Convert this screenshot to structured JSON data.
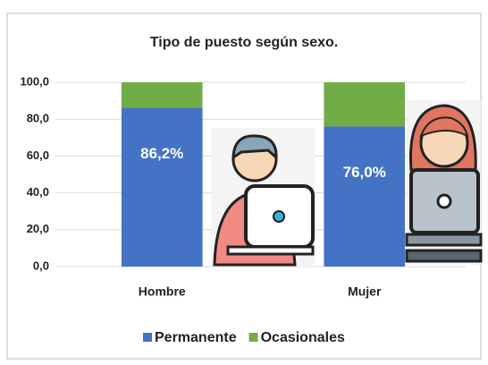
{
  "chart_data": {
    "type": "stacked-bar",
    "title": "Tipo de puesto según sexo.",
    "categories": [
      "Hombre",
      "Mujer"
    ],
    "series": [
      {
        "name": "Permanente",
        "color": "#4472c4",
        "values": [
          86.2,
          76.0
        ],
        "value_labels": [
          "86,2%",
          "76,0%"
        ]
      },
      {
        "name": "Ocasionales",
        "color": "#70ad47",
        "values": [
          13.8,
          24.0
        ]
      }
    ],
    "ylim": [
      0,
      100
    ],
    "yticks": [
      {
        "value": 0,
        "label": "0,0"
      },
      {
        "value": 20,
        "label": "20,0"
      },
      {
        "value": 40,
        "label": "40,0"
      },
      {
        "value": 60,
        "label": "60,0"
      },
      {
        "value": 80,
        "label": "80,0"
      },
      {
        "value": 100,
        "label": "100,0"
      }
    ],
    "grid": true,
    "legend": "bottom"
  }
}
